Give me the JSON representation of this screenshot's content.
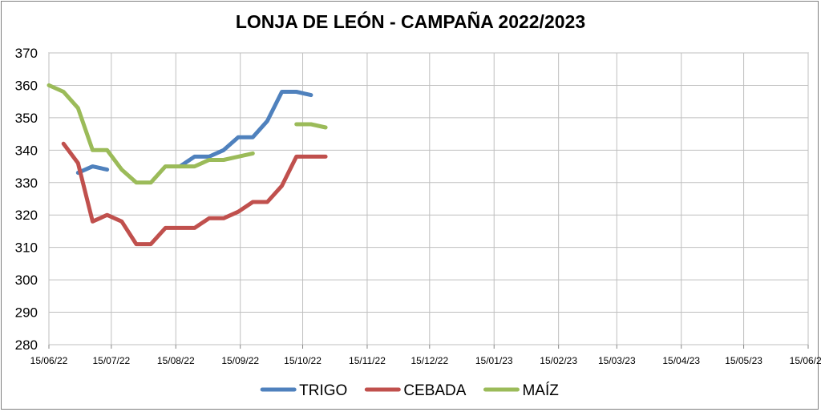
{
  "chart_data": {
    "type": "line",
    "title": "LONJA DE LEÓN - CAMPAÑA 2022/2023",
    "xlabel": "",
    "ylabel": "",
    "ylim": [
      280,
      370
    ],
    "yticks": [
      280,
      290,
      300,
      310,
      320,
      330,
      340,
      350,
      360,
      370
    ],
    "xlim": [
      "2022-06-15",
      "2023-06-15"
    ],
    "xticks": [
      "15/06/22",
      "15/07/22",
      "15/08/22",
      "15/09/22",
      "15/10/22",
      "15/11/22",
      "15/12/22",
      "15/01/23",
      "15/02/23",
      "15/03/23",
      "15/04/23",
      "15/05/23",
      "15/06/23"
    ],
    "grid": true,
    "legend": "bottom",
    "series": [
      {
        "name": "TRIGO",
        "color": "#4f81bd",
        "segments": [
          [
            [
              "2022-06-29",
              333
            ],
            [
              "2022-07-06",
              335
            ],
            [
              "2022-07-13",
              334
            ]
          ],
          [
            [
              "2022-08-17",
              335
            ],
            [
              "2022-08-24",
              338
            ],
            [
              "2022-08-31",
              338
            ],
            [
              "2022-09-07",
              340
            ],
            [
              "2022-09-14",
              344
            ],
            [
              "2022-09-21",
              344
            ],
            [
              "2022-09-28",
              349
            ],
            [
              "2022-10-05",
              358
            ],
            [
              "2022-10-12",
              358
            ],
            [
              "2022-10-19",
              357
            ]
          ]
        ]
      },
      {
        "name": "CEBADA",
        "color": "#c0504d",
        "segments": [
          [
            [
              "2022-06-22",
              342
            ],
            [
              "2022-06-29",
              336
            ],
            [
              "2022-07-06",
              318
            ],
            [
              "2022-07-13",
              320
            ],
            [
              "2022-07-20",
              318
            ],
            [
              "2022-07-27",
              311
            ],
            [
              "2022-08-03",
              311
            ],
            [
              "2022-08-10",
              316
            ],
            [
              "2022-08-17",
              316
            ],
            [
              "2022-08-24",
              316
            ],
            [
              "2022-08-31",
              319
            ],
            [
              "2022-09-07",
              319
            ],
            [
              "2022-09-14",
              321
            ],
            [
              "2022-09-21",
              324
            ],
            [
              "2022-09-28",
              324
            ],
            [
              "2022-10-05",
              329
            ],
            [
              "2022-10-12",
              338
            ],
            [
              "2022-10-19",
              338
            ],
            [
              "2022-10-26",
              338
            ]
          ]
        ]
      },
      {
        "name": "MAÍZ",
        "color": "#9bbb59",
        "segments": [
          [
            [
              "2022-06-15",
              360
            ],
            [
              "2022-06-22",
              358
            ],
            [
              "2022-06-29",
              353
            ],
            [
              "2022-07-06",
              340
            ],
            [
              "2022-07-13",
              340
            ],
            [
              "2022-07-20",
              334
            ],
            [
              "2022-07-27",
              330
            ],
            [
              "2022-08-03",
              330
            ],
            [
              "2022-08-10",
              335
            ],
            [
              "2022-08-17",
              335
            ],
            [
              "2022-08-24",
              335
            ],
            [
              "2022-08-31",
              337
            ],
            [
              "2022-09-07",
              337
            ],
            [
              "2022-09-14",
              338
            ],
            [
              "2022-09-21",
              339
            ]
          ],
          [
            [
              "2022-10-12",
              348
            ],
            [
              "2022-10-19",
              348
            ],
            [
              "2022-10-26",
              347
            ]
          ]
        ]
      }
    ]
  }
}
